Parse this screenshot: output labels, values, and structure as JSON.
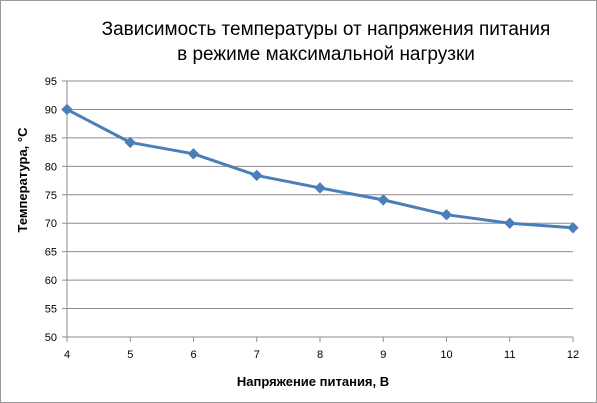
{
  "chart_data": {
    "type": "line",
    "title_line1": "Зависимость температуры  от напряжения  питания",
    "title_line2": "в режиме  максимальной  нагрузки",
    "xlabel": "Напряжение питания, В",
    "ylabel": "Температура, °С",
    "x": [
      4,
      5,
      6,
      7,
      8,
      9,
      10,
      11,
      12
    ],
    "series": [
      {
        "values": [
          90,
          84.2,
          82.2,
          78.4,
          76.2,
          74.1,
          71.5,
          70.0,
          69.2
        ]
      }
    ],
    "xlim": [
      4,
      12
    ],
    "ylim": [
      50,
      95
    ],
    "ytick_step": 5,
    "grid": true,
    "line_color": "#4a7ebb",
    "marker": "diamond"
  }
}
